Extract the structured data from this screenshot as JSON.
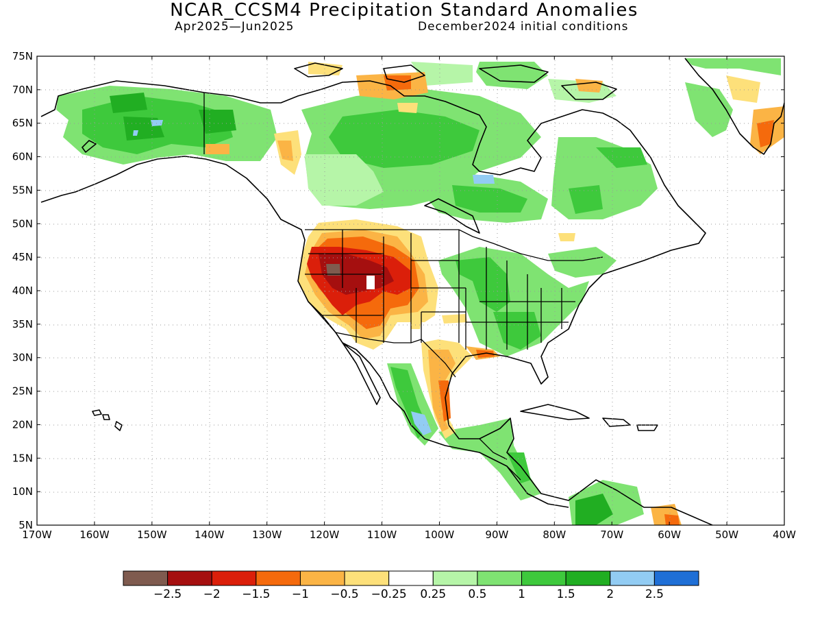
{
  "title": "NCAR_CCSM4 Precipitation Standard Anomalies",
  "subtitle_left": "Apr2025—Jun2025",
  "subtitle_right": "December2024 initial conditions",
  "map": {
    "lon_ticks": [
      "170W",
      "160W",
      "150W",
      "140W",
      "130W",
      "120W",
      "110W",
      "100W",
      "90W",
      "80W",
      "70W",
      "60W",
      "50W",
      "40W"
    ],
    "lat_ticks": [
      "75N",
      "70N",
      "65N",
      "60N",
      "55N",
      "50N",
      "45N",
      "40N",
      "35N",
      "30N",
      "25N",
      "20N",
      "15N",
      "10N",
      "5N"
    ],
    "gridlines": "dotted",
    "lon_range": [
      -170,
      -40
    ],
    "lat_range": [
      5,
      75
    ]
  },
  "colorbar": {
    "colors": [
      "#7f5b4f",
      "#a50f0f",
      "#db1f0a",
      "#f56a0c",
      "#fbb445",
      "#fde07a",
      "#ffffff",
      "#b6f5a8",
      "#7fe372",
      "#3ec93c",
      "#21ae22",
      "#92ccf3",
      "#1f6fd6"
    ],
    "labels": [
      "−2.5",
      "−2",
      "−1.5",
      "−1",
      "−0.5",
      "−0.25",
      "0.25",
      "0.5",
      "1",
      "1.5",
      "2",
      "2.5"
    ]
  }
}
